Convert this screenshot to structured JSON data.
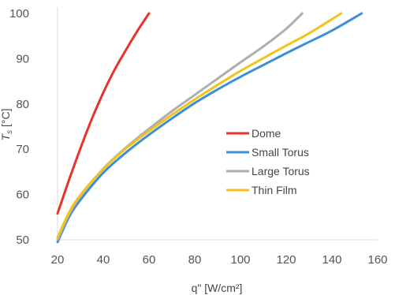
{
  "chart_data": {
    "type": "line",
    "xlabel": "q\" [W/cm²]",
    "ylabel": "T_s [°C]",
    "ylabel_main": "T",
    "ylabel_sub": "s",
    "ylabel_unit": " [°C]",
    "xlim": [
      20,
      160
    ],
    "ylim": [
      50,
      100
    ],
    "x_ticks": [
      20,
      40,
      60,
      80,
      100,
      120,
      140,
      160
    ],
    "y_ticks": [
      50,
      60,
      70,
      80,
      90,
      100
    ],
    "grid": false,
    "legend_position": "center-right",
    "series": [
      {
        "name": "Dome",
        "color": "#e8322c",
        "x": [
          20,
          25,
          30,
          35,
          40,
          45,
          50,
          55,
          60
        ],
        "y": [
          55.8,
          63.2,
          70.2,
          76.7,
          82.5,
          87.6,
          92.0,
          96.2,
          100
        ]
      },
      {
        "name": "Small Torus",
        "color": "#3b8fd6",
        "x": [
          20,
          25,
          30,
          40,
          50,
          60,
          70,
          80,
          90,
          100,
          110,
          120,
          130,
          140,
          153
        ],
        "y": [
          49.5,
          55.0,
          58.8,
          64.8,
          69.3,
          73.2,
          76.8,
          80.2,
          83.2,
          86.0,
          88.6,
          91.2,
          93.7,
          96.2,
          100
        ]
      },
      {
        "name": "Large Torus",
        "color": "#aeaeae",
        "x": [
          20,
          25,
          30,
          40,
          50,
          60,
          70,
          80,
          90,
          100,
          110,
          120,
          127
        ],
        "y": [
          50.0,
          55.6,
          59.6,
          65.7,
          70.4,
          74.5,
          78.4,
          82.0,
          85.6,
          89.2,
          92.7,
          96.6,
          100
        ]
      },
      {
        "name": "Thin Film",
        "color": "#f4c21c",
        "x": [
          20,
          25,
          30,
          40,
          50,
          60,
          70,
          80,
          90,
          100,
          110,
          120,
          130,
          144
        ],
        "y": [
          50.5,
          56.0,
          59.9,
          65.6,
          70.2,
          74.0,
          77.6,
          81.0,
          84.2,
          87.3,
          90.1,
          92.9,
          95.6,
          100
        ]
      }
    ]
  }
}
